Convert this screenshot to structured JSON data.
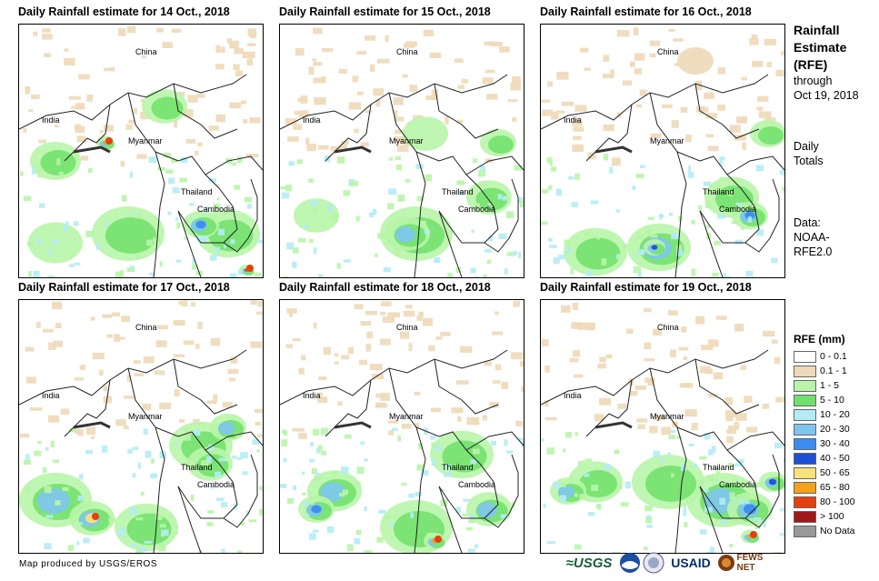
{
  "panels": [
    {
      "title": "Daily Rainfall estimate for 14 Oct., 2018"
    },
    {
      "title": "Daily Rainfall estimate for 15 Oct., 2018"
    },
    {
      "title": "Daily Rainfall estimate for 16 Oct., 2018"
    },
    {
      "title": "Daily Rainfall estimate for 17 Oct., 2018"
    },
    {
      "title": "Daily Rainfall estimate for 18 Oct., 2018"
    },
    {
      "title": "Daily Rainfall estimate for 19 Oct., 2018"
    }
  ],
  "map_labels": {
    "china": "China",
    "india": "India",
    "myanmar": "Myanmar",
    "thailand": "Thailand",
    "cambodia": "Cambodia"
  },
  "side": {
    "title_1": "Rainfall",
    "title_2": "Estimate",
    "title_3": "(RFE)",
    "through_1": "through",
    "through_2": "Oct 19, 2018",
    "daily_1": "Daily",
    "daily_2": "Totals",
    "data_1": "Data:",
    "data_2": "NOAA-",
    "data_3": "RFE2.0"
  },
  "legend": {
    "title": "RFE (mm)",
    "items": [
      {
        "label": "0 - 0.1",
        "color": "#ffffff"
      },
      {
        "label": "0.1 - 1",
        "color": "#eed9b8"
      },
      {
        "label": "1 - 5",
        "color": "#b8f5a8"
      },
      {
        "label": "5 - 10",
        "color": "#6fe06a"
      },
      {
        "label": "10 - 20",
        "color": "#b4ecf5"
      },
      {
        "label": "20 - 30",
        "color": "#7ec5f0"
      },
      {
        "label": "30 - 40",
        "color": "#3b8cf0"
      },
      {
        "label": "40 - 50",
        "color": "#1c50d6"
      },
      {
        "label": "50 - 65",
        "color": "#f9e27a"
      },
      {
        "label": "65 - 80",
        "color": "#f5a11a"
      },
      {
        "label": "80 - 100",
        "color": "#e6400e"
      },
      {
        "label": "> 100",
        "color": "#a01818"
      },
      {
        "label": "No Data",
        "color": "#999999"
      }
    ]
  },
  "credit": "Map produced by USGS/EROS",
  "logos": {
    "usgs": "≈USGS",
    "usaid": "USAID",
    "fewsnet": "FEWS NET"
  }
}
